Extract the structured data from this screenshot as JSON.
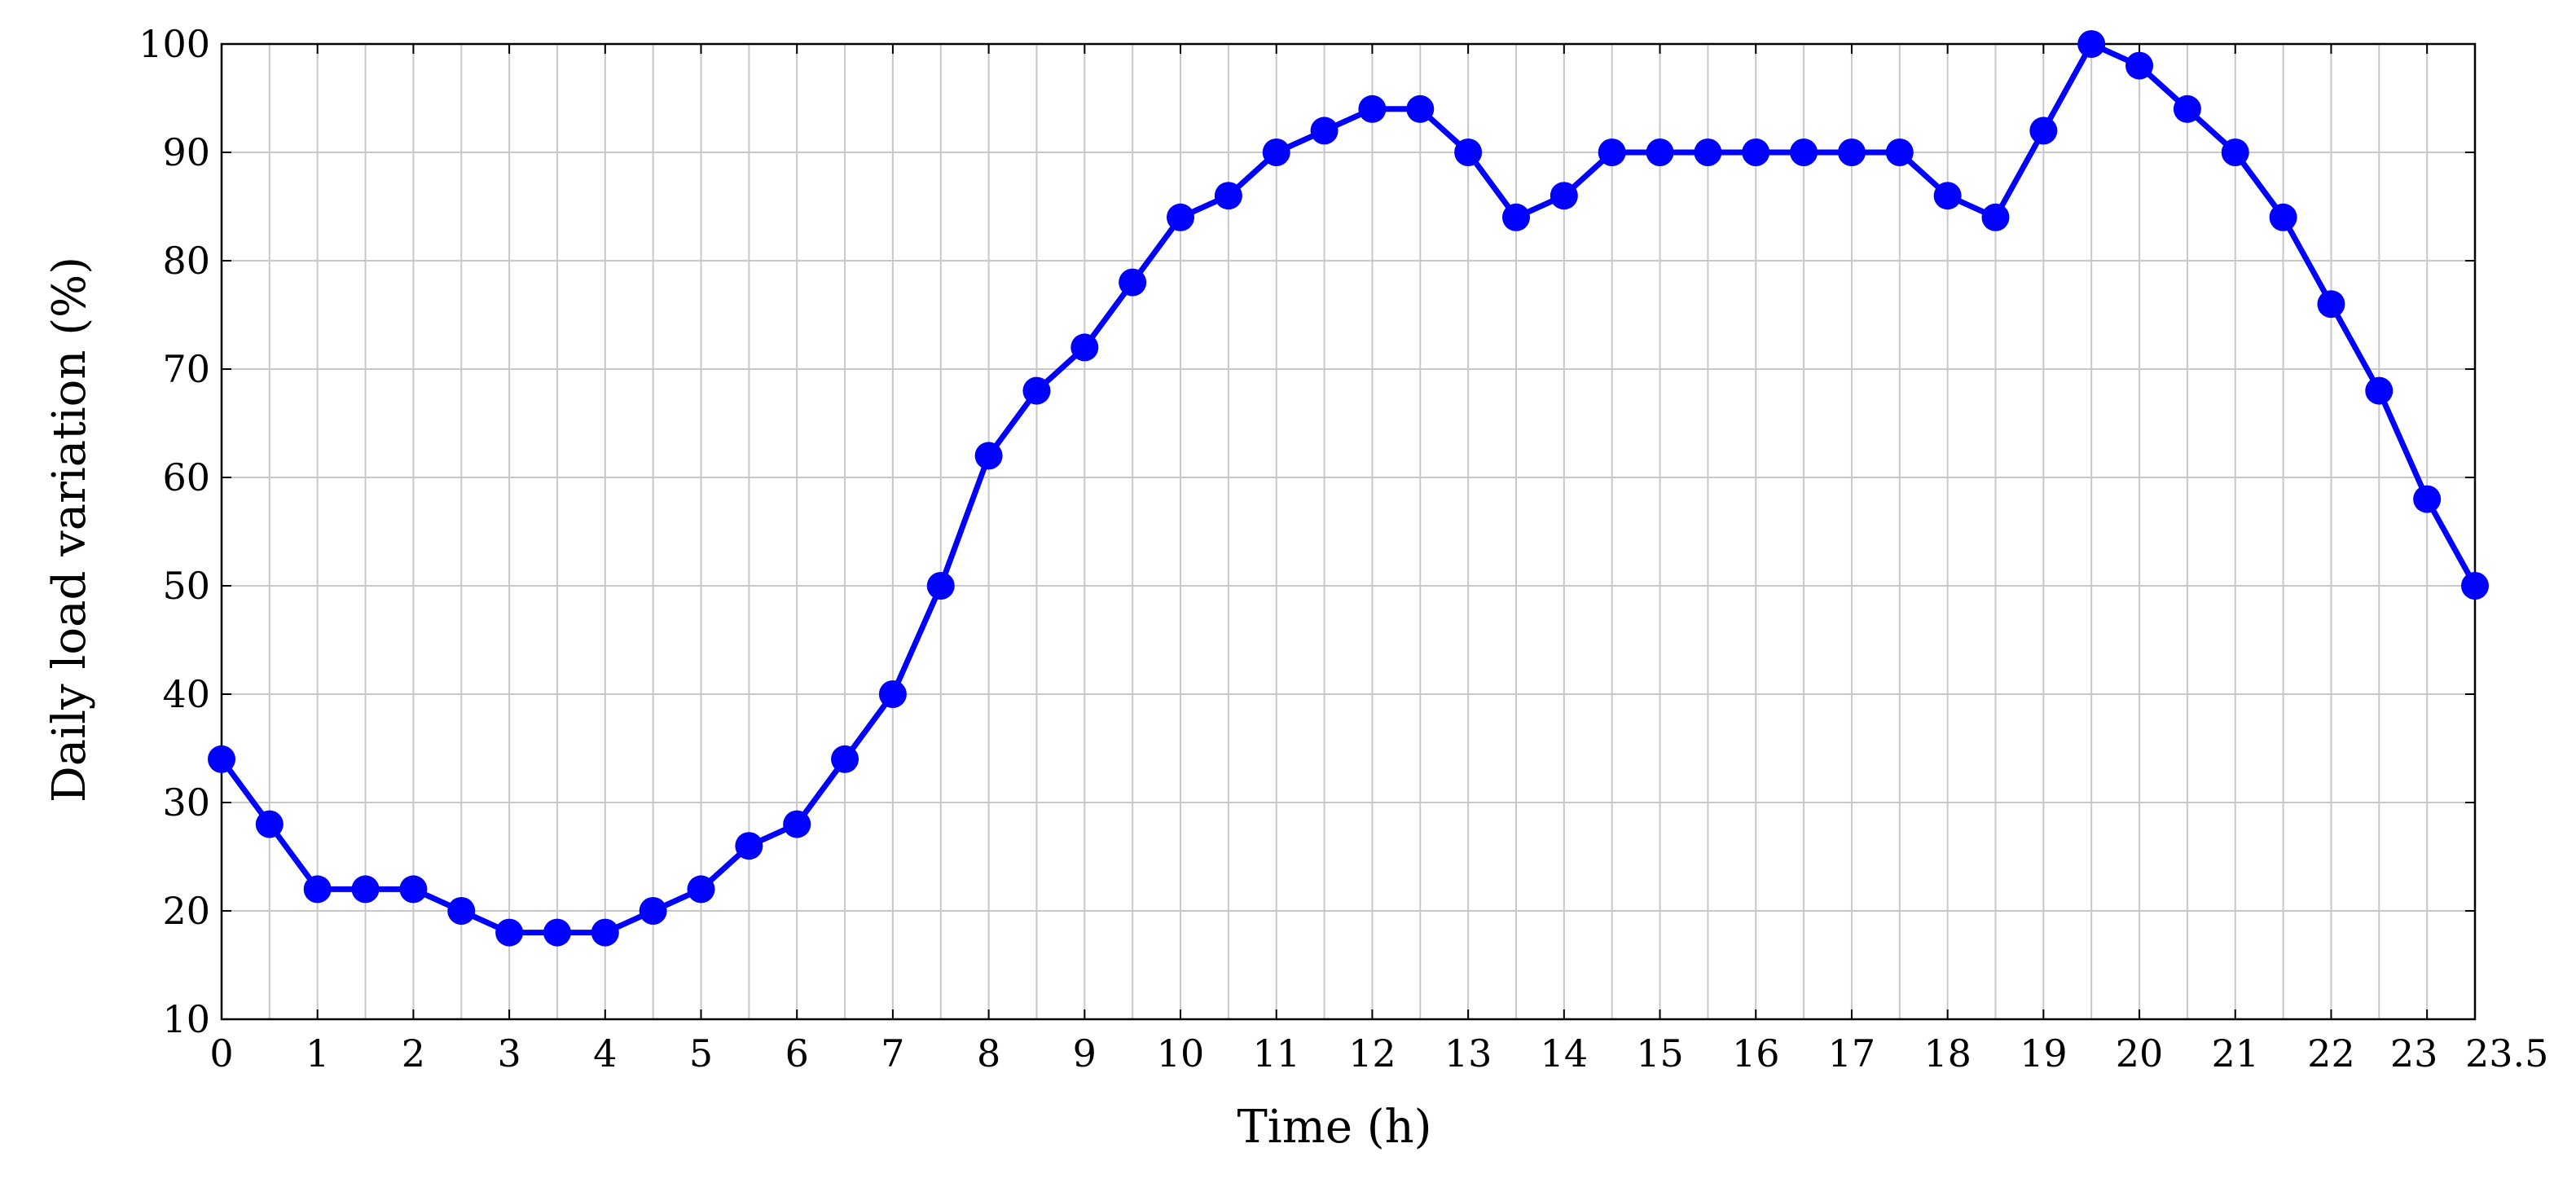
{
  "chart_data": {
    "type": "line",
    "title": "",
    "xlabel": "Time (h)",
    "ylabel": "Daily load variation (%)",
    "xlim": [
      0,
      23.5
    ],
    "ylim": [
      10,
      100
    ],
    "x_ticks": [
      0,
      1,
      2,
      3,
      4,
      5,
      6,
      7,
      8,
      9,
      10,
      11,
      12,
      13,
      14,
      15,
      16,
      17,
      18,
      19,
      20,
      21,
      22,
      23,
      23.5
    ],
    "x_tick_labels": [
      "0",
      "1",
      "2",
      "3",
      "4",
      "5",
      "6",
      "7",
      "8",
      "9",
      "10",
      "11",
      "12",
      "13",
      "14",
      "15",
      "16",
      "17",
      "18",
      "19",
      "20",
      "21",
      "22",
      "23",
      "23.5"
    ],
    "y_ticks": [
      10,
      20,
      30,
      40,
      50,
      60,
      70,
      80,
      90,
      100
    ],
    "y_tick_labels": [
      "10",
      "20",
      "30",
      "40",
      "50",
      "60",
      "70",
      "80",
      "90",
      "100"
    ],
    "x_grid": [
      0.5,
      1,
      1.5,
      2,
      2.5,
      3,
      3.5,
      4,
      4.5,
      5,
      5.5,
      6,
      6.5,
      7,
      7.5,
      8,
      8.5,
      9,
      9.5,
      10,
      10.5,
      11,
      11.5,
      12,
      12.5,
      13,
      13.5,
      14,
      14.5,
      15,
      15.5,
      16,
      16.5,
      17,
      17.5,
      18,
      18.5,
      19,
      19.5,
      20,
      20.5,
      21,
      21.5,
      22,
      22.5,
      23
    ],
    "grid": true,
    "series": [
      {
        "color": "#0000ff",
        "marker": "circle",
        "x": [
          0,
          0.5,
          1,
          1.5,
          2,
          2.5,
          3,
          3.5,
          4,
          4.5,
          5,
          5.5,
          6,
          6.5,
          7,
          7.5,
          8,
          8.5,
          9,
          9.5,
          10,
          10.5,
          11,
          11.5,
          12,
          12.5,
          13,
          13.5,
          14,
          14.5,
          15,
          15.5,
          16,
          16.5,
          17,
          17.5,
          18,
          18.5,
          19,
          19.5,
          20,
          20.5,
          21,
          21.5,
          22,
          22.5,
          23,
          23.5
        ],
        "y": [
          34,
          28,
          22,
          22,
          22,
          20,
          18,
          18,
          18,
          20,
          22,
          26,
          28,
          34,
          40,
          50,
          62,
          68,
          72,
          78,
          84,
          86,
          90,
          92,
          94,
          94,
          90,
          84,
          86,
          90,
          90,
          90,
          90,
          90,
          90,
          90,
          86,
          84,
          92,
          100,
          98,
          94,
          90,
          84,
          76,
          68,
          58,
          50
        ]
      }
    ]
  }
}
